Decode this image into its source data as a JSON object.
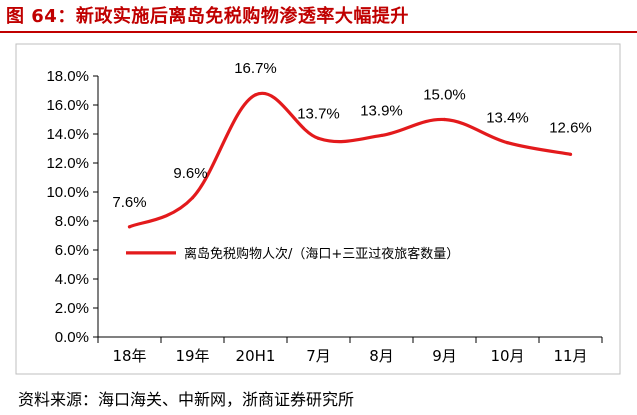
{
  "figure": {
    "title": "图 64：新政实施后离岛免税购物渗透率大幅提升",
    "source": "资料来源：海口海关、中新网，浙商证券研究所"
  },
  "chart_data": {
    "type": "line",
    "title": "",
    "xlabel": "",
    "ylabel": "",
    "categories": [
      "18年",
      "19年",
      "20H1",
      "7月",
      "8月",
      "9月",
      "10月",
      "11月"
    ],
    "series": [
      {
        "name": "离岛免税购物人次/（海口+三亚过夜旅客数量）",
        "values": [
          7.6,
          9.6,
          16.7,
          13.7,
          13.9,
          15.0,
          13.4,
          12.6
        ],
        "labels": [
          "7.6%",
          "9.6%",
          "16.7%",
          "13.7%",
          "13.9%",
          "15.0%",
          "13.4%",
          "12.6%"
        ],
        "color": "#e31a1c"
      }
    ],
    "ylim": [
      0,
      18
    ],
    "yticks": [
      0,
      2,
      4,
      6,
      8,
      10,
      12,
      14,
      16,
      18
    ],
    "ytick_labels": [
      "0.0%",
      "2.0%",
      "4.0%",
      "6.0%",
      "8.0%",
      "10.0%",
      "12.0%",
      "14.0%",
      "16.0%",
      "18.0%"
    ],
    "grid": false,
    "legend_position": "center-left",
    "smooth": true
  }
}
